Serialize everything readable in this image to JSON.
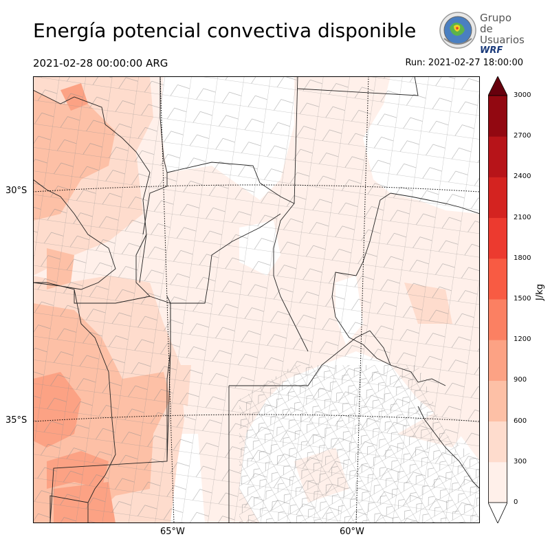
{
  "header": {
    "title": "Energía potencial convectiva disponible",
    "valid_time": "2021-02-28 00:00:00 ARG",
    "run_time": "Run: 2021-02-27 18:00:00"
  },
  "logo": {
    "line1": "Grupo de",
    "line2": "Usuarios",
    "line3": "WRF"
  },
  "map": {
    "lat_labels": [
      "30°S",
      "35°S"
    ],
    "lon_labels": [
      "65°W",
      "60°W"
    ]
  },
  "colorbar": {
    "unit": "J/kg",
    "ticks": [
      "0",
      "300",
      "600",
      "900",
      "1200",
      "1500",
      "1800",
      "2100",
      "2400",
      "2700",
      "3000"
    ],
    "colors": [
      "#fff0ea",
      "#fedccd",
      "#fdc0a6",
      "#fca284",
      "#fb8062",
      "#f85b43",
      "#ec3a2f",
      "#d42320",
      "#b71419",
      "#920811"
    ],
    "over_color": "#67000d",
    "under_color": "#ffffff"
  }
}
